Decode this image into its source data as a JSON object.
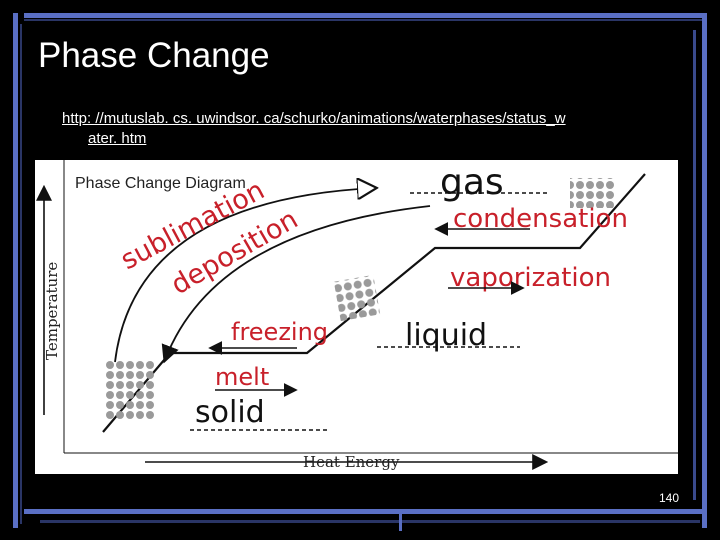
{
  "slide": {
    "title": "Phase Change",
    "link_line1": "http: //mutuslab. cs. uwindsor. ca/schurko/animations/waterphases/status_w",
    "link_line2": "ater. htm",
    "page_number": "140"
  },
  "diagram": {
    "title": "Phase Change Diagram",
    "y_axis_label": "Temperature",
    "x_axis_label": "Heat Energy",
    "labels": {
      "gas": "gas",
      "condensation": "condensation",
      "vaporization": "vaporization",
      "liquid": "liquid",
      "freezing": "freezing",
      "melt": "melt",
      "solid": "solid",
      "sublimation": "sublimation",
      "deposition": "deposition"
    }
  },
  "colors": {
    "background": "#000000",
    "frame_blue": "#5a6fc4",
    "frame_dark": "#2a3566",
    "handwriting_red": "#c8202a",
    "handwriting_black": "#111111"
  }
}
